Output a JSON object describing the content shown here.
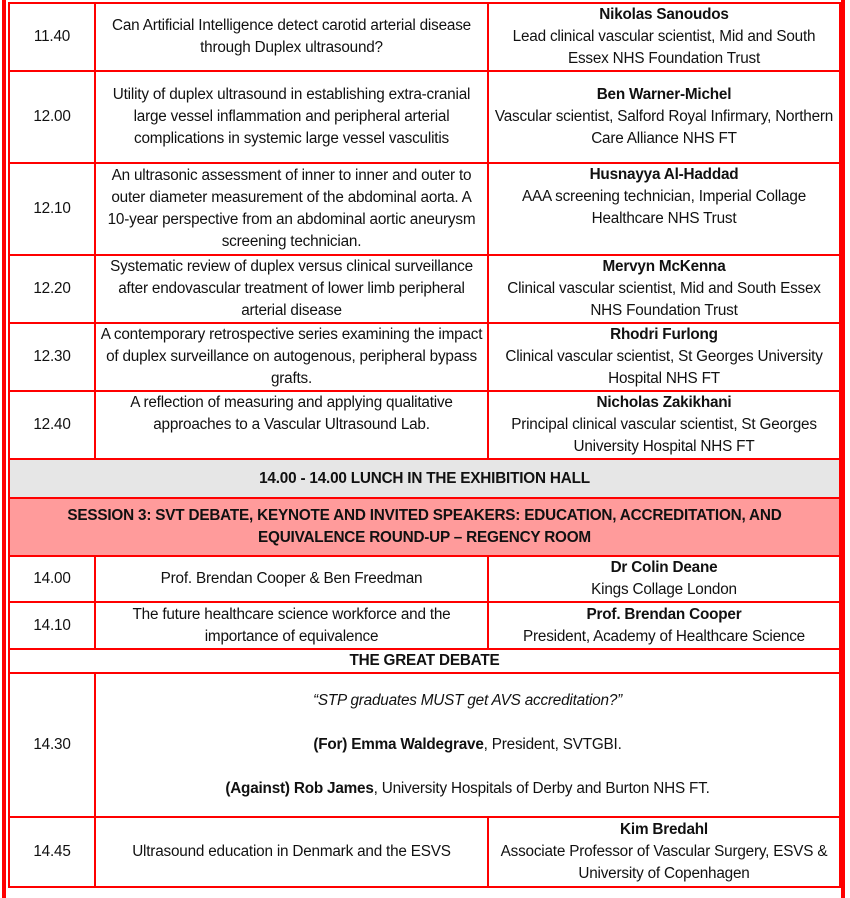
{
  "rows1": [
    {
      "time": "11.40",
      "title": "Can Artificial Intelligence detect carotid arterial disease through Duplex ultrasound?",
      "speaker": "Nikolas Sanoudos",
      "affil": "Lead clinical vascular scientist, Mid and South Essex NHS Foundation Trust"
    },
    {
      "time": "12.00",
      "title": "Utility of duplex ultrasound in establishing extra-cranial large vessel inflammation and peripheral arterial complications in systemic large vessel vasculitis",
      "speaker": "Ben Warner-Michel",
      "affil": "Vascular scientist, Salford Royal Infirmary, Northern Care Alliance NHS FT"
    },
    {
      "time": "12.10",
      "title": "An ultrasonic assessment of inner to inner and outer to outer diameter measurement of the abdominal aorta. A 10-year perspective from an abdominal aortic aneurysm screening technician.",
      "speaker": "Husnayya Al-Haddad",
      "affil": "AAA screening technician, Imperial Collage Healthcare NHS Trust"
    },
    {
      "time": "12.20",
      "title": "Systematic review of duplex versus clinical surveillance after endovascular treatment of lower limb peripheral arterial disease",
      "speaker": "Mervyn McKenna",
      "affil": "Clinical vascular scientist, Mid and South Essex NHS Foundation Trust"
    },
    {
      "time": "12.30",
      "title": "A contemporary retrospective series examining the impact of duplex surveillance on autogenous, peripheral bypass grafts.",
      "speaker": "Rhodri Furlong",
      "affil": "Clinical vascular scientist, St Georges University Hospital NHS FT"
    },
    {
      "time": "12.40",
      "title": "A reflection of measuring and applying qualitative approaches to a Vascular Ultrasound Lab.",
      "speaker": "Nicholas Zakikhani",
      "affil": "Principal clinical vascular scientist, St Georges University Hospital NHS FT"
    }
  ],
  "lunch": "14.00 - 14.00 LUNCH IN THE EXHIBITION HALL",
  "session": "SESSION 3: SVT DEBATE, KEYNOTE AND INVITED SPEAKERS: EDUCATION, ACCREDITATION, AND EQUIVALENCE ROUND-UP – REGENCY ROOM",
  "rows2": [
    {
      "time": "14.00",
      "title": "Prof. Brendan Cooper & Ben Freedman",
      "speaker": "Dr Colin Deane",
      "affil": "Kings Collage London"
    },
    {
      "time": "14.10",
      "title": "The future healthcare science workforce and the importance of equivalence",
      "speaker": "Prof. Brendan Cooper",
      "affil": "President, Academy of Healthcare Science"
    }
  ],
  "debate": {
    "heading": "THE GREAT DEBATE",
    "time": "14.30",
    "motion": "“STP graduates MUST get AVS accreditation?”",
    "for_label": "(For) Emma Waldegrave",
    "for_rest": ", President, SVTGBI.",
    "against_label": "(Against) Rob James",
    "against_rest": ", University Hospitals of Derby and Burton NHS FT."
  },
  "last": {
    "time": "14.45",
    "title": "Ultrasound education in Denmark and the ESVS",
    "speaker": "Kim Bredahl",
    "affil": "Associate Professor of Vascular Surgery, ESVS & University of Copenhagen"
  }
}
